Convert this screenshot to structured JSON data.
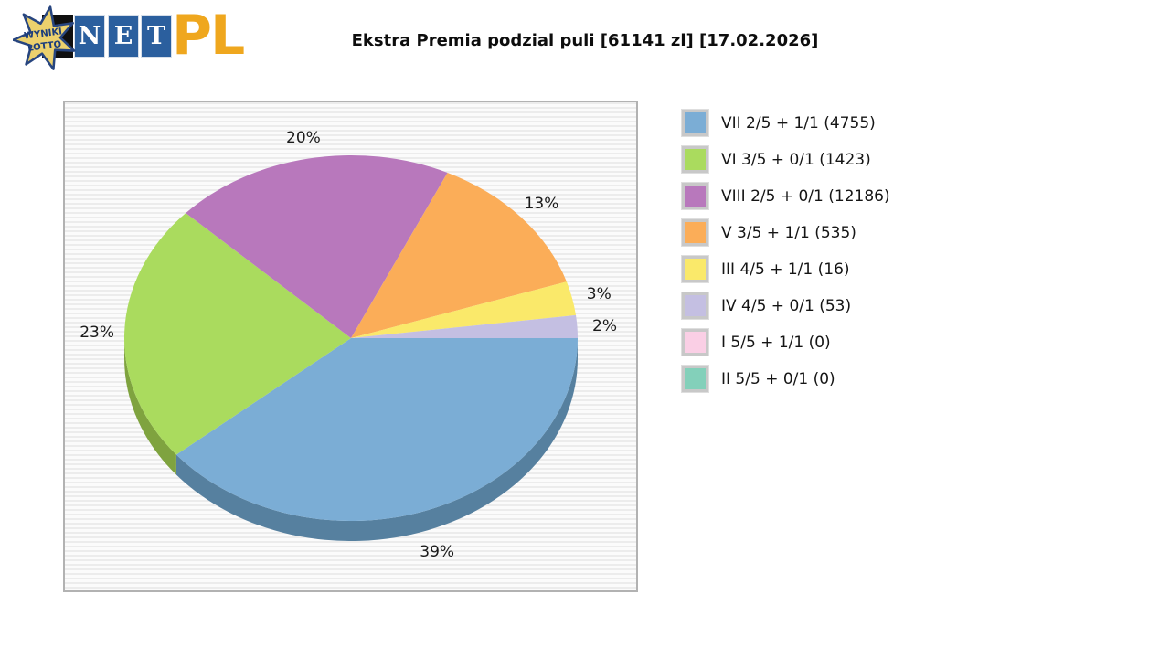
{
  "logo": {
    "star_line1": "WYNIKI",
    "star_line2": "LOTTO",
    "tiles": [
      "N",
      "E",
      "T"
    ],
    "suffix": "PL",
    "colors": {
      "tile_blue": "#2b5f9e",
      "star_yellow": "#ecd16d",
      "star_outline": "#27457f",
      "suffix_gold": "#efa71e"
    }
  },
  "header": {
    "title": "Ekstra Premia podzial puli [61141 zl] [17.02.2026]"
  },
  "chart_data": {
    "type": "pie",
    "title": "Ekstra Premia podzial puli [61141 zl] [17.02.2026]",
    "pool_total_text": "61141 zl",
    "date_text": "17.02.2026",
    "effect": "3d",
    "start_angle_deg": 0,
    "direction": "clockwise",
    "legend_position": "right",
    "slices": [
      {
        "legend": "VII 2/5 + 1/1 (4755)",
        "tier": "VII 2/5 + 1/1",
        "count": 4755,
        "percent": 39,
        "color": "#7badd5",
        "dark": "#56809f"
      },
      {
        "legend": "VI 3/5 + 0/1 (1423)",
        "tier": "VI 3/5 + 0/1",
        "count": 1423,
        "percent": 23,
        "color": "#aadb5e",
        "dark": "#7fa33f"
      },
      {
        "legend": "VIII 2/5 + 0/1 (12186)",
        "tier": "VIII 2/5 + 0/1",
        "count": 12186,
        "percent": 20,
        "color": "#b878bc",
        "dark": "#8e5591"
      },
      {
        "legend": "V 3/5 + 1/1 (535)",
        "tier": "V 3/5 + 1/1",
        "count": 535,
        "percent": 13,
        "color": "#fbad58",
        "dark": "#c98234"
      },
      {
        "legend": "III 4/5 + 1/1 (16)",
        "tier": "III 4/5 + 1/1",
        "count": 16,
        "percent": 3,
        "color": "#fae96a",
        "dark": "#c9b93e"
      },
      {
        "legend": "IV 4/5 + 0/1 (53)",
        "tier": "IV 4/5 + 0/1",
        "count": 53,
        "percent": 2,
        "color": "#c4bfe2",
        "dark": "#9894b8"
      },
      {
        "legend": "I 5/5 + 1/1 (0)",
        "tier": "I 5/5 + 1/1",
        "count": 0,
        "percent": 0,
        "color": "#facfe5",
        "dark": "#c8a0b8"
      },
      {
        "legend": "II 5/5 + 0/1 (0)",
        "tier": "II 5/5 + 0/1",
        "count": 0,
        "percent": 0,
        "color": "#83d0ba",
        "dark": "#5fa68f"
      }
    ]
  }
}
